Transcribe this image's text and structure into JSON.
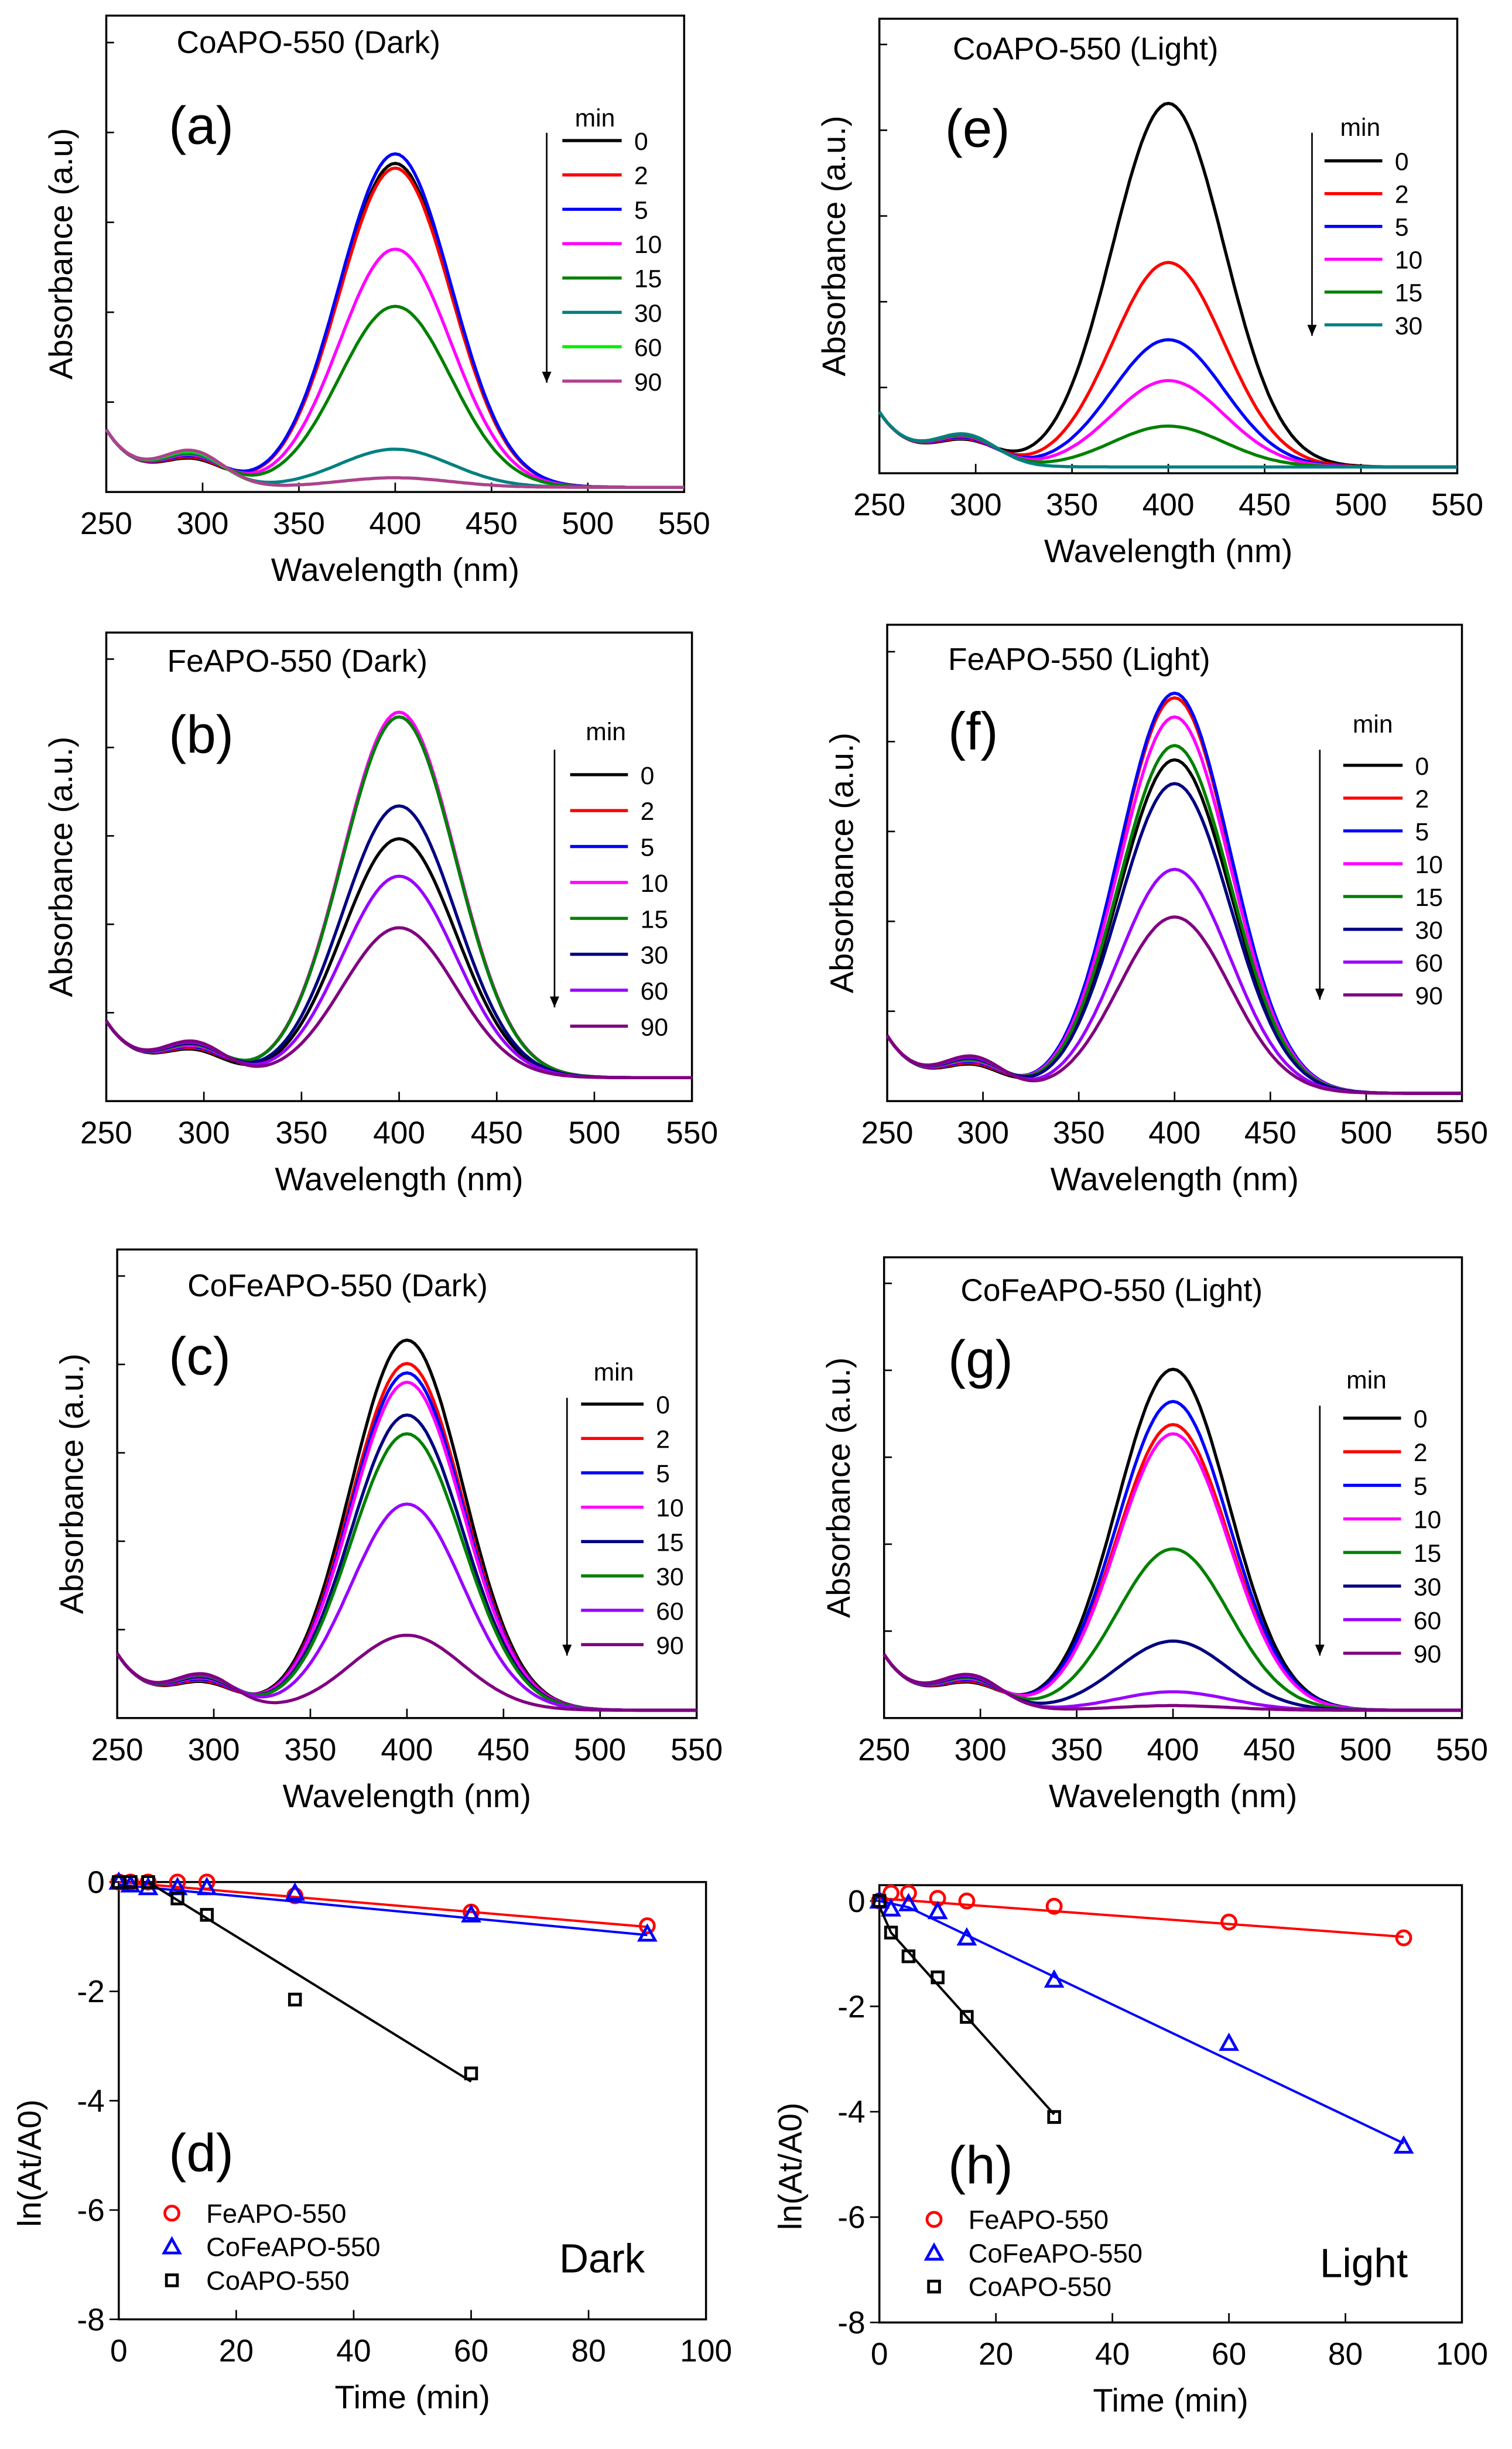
{
  "chart_data": [
    {
      "panel": "a",
      "type": "line",
      "title": "CoAPO-550 (Dark)",
      "label": "(a)",
      "xlabel": "Wavelength (nm)",
      "ylabel": "Absorbance (a.u)",
      "xlim": [
        250,
        550
      ],
      "xticks": [
        "250",
        "300",
        "350",
        "400",
        "450",
        "500",
        "550"
      ],
      "legend_title": "min",
      "legend_placement": "right",
      "series": [
        {
          "name": "0",
          "color": "#000000",
          "peak": 0.68
        },
        {
          "name": "2",
          "color": "#ff0000",
          "peak": 0.67
        },
        {
          "name": "5",
          "color": "#0000ff",
          "peak": 0.7
        },
        {
          "name": "10",
          "color": "#ff00ff",
          "peak": 0.5
        },
        {
          "name": "15",
          "color": "#008000",
          "peak": 0.38
        },
        {
          "name": "30",
          "color": "#008080",
          "peak": 0.08
        },
        {
          "name": "60",
          "color": "#00ee00",
          "peak": 0.02
        },
        {
          "name": "90",
          "color": "#b04090",
          "peak": 0.02
        }
      ]
    },
    {
      "panel": "e",
      "type": "line",
      "title": "CoAPO-550 (Light)",
      "label": "(e)",
      "xlabel": "Wavelength (nm)",
      "ylabel": "Absorbance (a.u.)",
      "xlim": [
        250,
        550
      ],
      "xticks": [
        "250",
        "300",
        "350",
        "400",
        "450",
        "500",
        "550"
      ],
      "legend_title": "min",
      "legend_placement": "right",
      "series": [
        {
          "name": "0",
          "color": "#000000",
          "peak": 0.8
        },
        {
          "name": "2",
          "color": "#ff0000",
          "peak": 0.45
        },
        {
          "name": "5",
          "color": "#0000ff",
          "peak": 0.28
        },
        {
          "name": "10",
          "color": "#ff00ff",
          "peak": 0.19
        },
        {
          "name": "15",
          "color": "#008000",
          "peak": 0.09
        },
        {
          "name": "30",
          "color": "#008080",
          "peak": 0.0
        }
      ]
    },
    {
      "panel": "b",
      "type": "line",
      "title": "FeAPO-550 (Dark)",
      "label": "(b)",
      "xlabel": "Wavelength (nm)",
      "ylabel": "Absorbance (a.u.)",
      "xlim": [
        250,
        550
      ],
      "xticks": [
        "250",
        "300",
        "350",
        "400",
        "450",
        "500",
        "550"
      ],
      "legend_title": "min",
      "legend_placement": "right",
      "series": [
        {
          "name": "0",
          "color": "#000000",
          "peak": 0.51
        },
        {
          "name": "2",
          "color": "#ff0000",
          "peak": 0.78
        },
        {
          "name": "5",
          "color": "#0000ff",
          "peak": 0.77
        },
        {
          "name": "10",
          "color": "#ff00ff",
          "peak": 0.78
        },
        {
          "name": "15",
          "color": "#008000",
          "peak": 0.77
        },
        {
          "name": "30",
          "color": "#000080",
          "peak": 0.58
        },
        {
          "name": "60",
          "color": "#9900ff",
          "peak": 0.43
        },
        {
          "name": "90",
          "color": "#800080",
          "peak": 0.32
        }
      ]
    },
    {
      "panel": "f",
      "type": "line",
      "title": "FeAPO-550 (Light)",
      "label": "(f)",
      "xlabel": "Wavelength (nm)",
      "ylabel": "Absorbance (a.u.)",
      "xlim": [
        250,
        550
      ],
      "xticks": [
        "250",
        "300",
        "350",
        "400",
        "450",
        "500",
        "550"
      ],
      "legend_title": "min",
      "legend_placement": "right",
      "series": [
        {
          "name": "0",
          "color": "#000000",
          "peak": 0.7
        },
        {
          "name": "2",
          "color": "#ff0000",
          "peak": 0.83
        },
        {
          "name": "5",
          "color": "#0000ff",
          "peak": 0.84
        },
        {
          "name": "10",
          "color": "#ff00ff",
          "peak": 0.79
        },
        {
          "name": "15",
          "color": "#008000",
          "peak": 0.73
        },
        {
          "name": "30",
          "color": "#000080",
          "peak": 0.65
        },
        {
          "name": "60",
          "color": "#9900ff",
          "peak": 0.47
        },
        {
          "name": "90",
          "color": "#800080",
          "peak": 0.37
        }
      ]
    },
    {
      "panel": "c",
      "type": "line",
      "title": "CoFeAPO-550 (Dark)",
      "label": "(c)",
      "xlabel": "Wavelength (nm)",
      "ylabel": "Absorbance (a.u.)",
      "xlim": [
        250,
        550
      ],
      "xticks": [
        "250",
        "300",
        "350",
        "400",
        "450",
        "500",
        "550"
      ],
      "legend_title": "min",
      "legend_placement": "right",
      "series": [
        {
          "name": "0",
          "color": "#000000",
          "peak": 0.79
        },
        {
          "name": "2",
          "color": "#ff0000",
          "peak": 0.74
        },
        {
          "name": "5",
          "color": "#0000ff",
          "peak": 0.72
        },
        {
          "name": "10",
          "color": "#ff00ff",
          "peak": 0.7
        },
        {
          "name": "15",
          "color": "#000080",
          "peak": 0.63
        },
        {
          "name": "30",
          "color": "#008000",
          "peak": 0.59
        },
        {
          "name": "60",
          "color": "#9900ff",
          "peak": 0.44
        },
        {
          "name": "90",
          "color": "#800080",
          "peak": 0.16
        }
      ]
    },
    {
      "panel": "g",
      "type": "line",
      "title": "CoFeAPO-550 (Light)",
      "label": "(g)",
      "xlabel": "Wavelength (nm)",
      "ylabel": "Absorbance (a.u.)",
      "xlim": [
        250,
        550
      ],
      "xticks": [
        "250",
        "300",
        "350",
        "400",
        "450",
        "500",
        "550"
      ],
      "legend_title": "min",
      "legend_placement": "right",
      "series": [
        {
          "name": "0",
          "color": "#000000",
          "peak": 0.74
        },
        {
          "name": "2",
          "color": "#ff0000",
          "peak": 0.62
        },
        {
          "name": "5",
          "color": "#0000ff",
          "peak": 0.67
        },
        {
          "name": "10",
          "color": "#ff00ff",
          "peak": 0.6
        },
        {
          "name": "15",
          "color": "#008000",
          "peak": 0.35
        },
        {
          "name": "30",
          "color": "#000080",
          "peak": 0.15
        },
        {
          "name": "60",
          "color": "#9900ff",
          "peak": 0.04
        },
        {
          "name": "90",
          "color": "#800080",
          "peak": 0.01
        }
      ]
    },
    {
      "panel": "d",
      "type": "scatter",
      "label": "(d)",
      "annotation": "Dark",
      "xlabel": "Time (min)",
      "ylabel": "ln(At/A0)",
      "xlim": [
        0,
        100
      ],
      "ylim": [
        -8,
        0
      ],
      "xticks": [
        "0",
        "20",
        "40",
        "60",
        "80",
        "100"
      ],
      "yticks": [
        "0",
        "-2",
        "-4",
        "-6",
        "-8"
      ],
      "legend_placement": "bottom-left",
      "series": [
        {
          "name": "FeAPO-550",
          "color": "#ff0000",
          "marker": "circle",
          "x": [
            0,
            2,
            5,
            10,
            15,
            30,
            60,
            90
          ],
          "y": [
            0,
            0,
            0,
            0,
            0,
            -0.25,
            -0.55,
            -0.8
          ],
          "fit": {
            "x": [
              0,
              90
            ],
            "y": [
              0,
              -0.82
            ]
          }
        },
        {
          "name": "CoFeAPO-550",
          "color": "#0000ff",
          "marker": "triangle",
          "x": [
            0,
            2,
            5,
            10,
            15,
            30,
            60,
            90
          ],
          "y": [
            0,
            -0.05,
            -0.1,
            -0.1,
            -0.1,
            -0.2,
            -0.6,
            -0.95
          ],
          "fit": {
            "x": [
              0,
              90
            ],
            "y": [
              -0.05,
              -0.97
            ]
          }
        },
        {
          "name": "CoAPO-550",
          "color": "#000000",
          "marker": "square",
          "x": [
            0,
            2,
            5,
            10,
            15,
            30,
            60
          ],
          "y": [
            0,
            0,
            0,
            -0.3,
            -0.6,
            -2.15,
            -3.5
          ],
          "fit": {
            "x": [
              5,
              60
            ],
            "y": [
              0,
              -3.65
            ]
          }
        }
      ]
    },
    {
      "panel": "h",
      "type": "scatter",
      "label": "(h)",
      "annotation": "Light",
      "xlabel": "Time (min)",
      "ylabel": "ln(At/A0)",
      "xlim": [
        0,
        100
      ],
      "ylim": [
        -8,
        0.3
      ],
      "xticks": [
        "0",
        "20",
        "40",
        "60",
        "80",
        "100"
      ],
      "yticks": [
        "0",
        "-2",
        "-4",
        "-6",
        "-8"
      ],
      "legend_placement": "bottom-left",
      "series": [
        {
          "name": "FeAPO-550",
          "color": "#ff0000",
          "marker": "circle",
          "x": [
            0,
            2,
            5,
            10,
            15,
            30,
            60,
            90
          ],
          "y": [
            0,
            0.15,
            0.15,
            0.05,
            0,
            -0.1,
            -0.4,
            -0.7
          ],
          "fit": {
            "x": [
              0,
              90
            ],
            "y": [
              0.05,
              -0.68
            ]
          }
        },
        {
          "name": "CoFeAPO-550",
          "color": "#0000ff",
          "marker": "triangle",
          "x": [
            0,
            2,
            5,
            10,
            15,
            30,
            60,
            90
          ],
          "y": [
            0,
            -0.15,
            -0.05,
            -0.2,
            -0.7,
            -1.5,
            -2.7,
            -4.65
          ],
          "fit": {
            "x": [
              0,
              5,
              90
            ],
            "y": [
              0,
              -0.12,
              -4.6
            ]
          }
        },
        {
          "name": "CoAPO-550",
          "color": "#000000",
          "marker": "square",
          "x": [
            0,
            2,
            5,
            10,
            15,
            30
          ],
          "y": [
            0,
            -0.6,
            -1.05,
            -1.45,
            -2.2,
            -4.1
          ],
          "fit": {
            "x": [
              0,
              2,
              30
            ],
            "y": [
              -0.1,
              -0.6,
              -4.05
            ]
          }
        }
      ]
    }
  ]
}
